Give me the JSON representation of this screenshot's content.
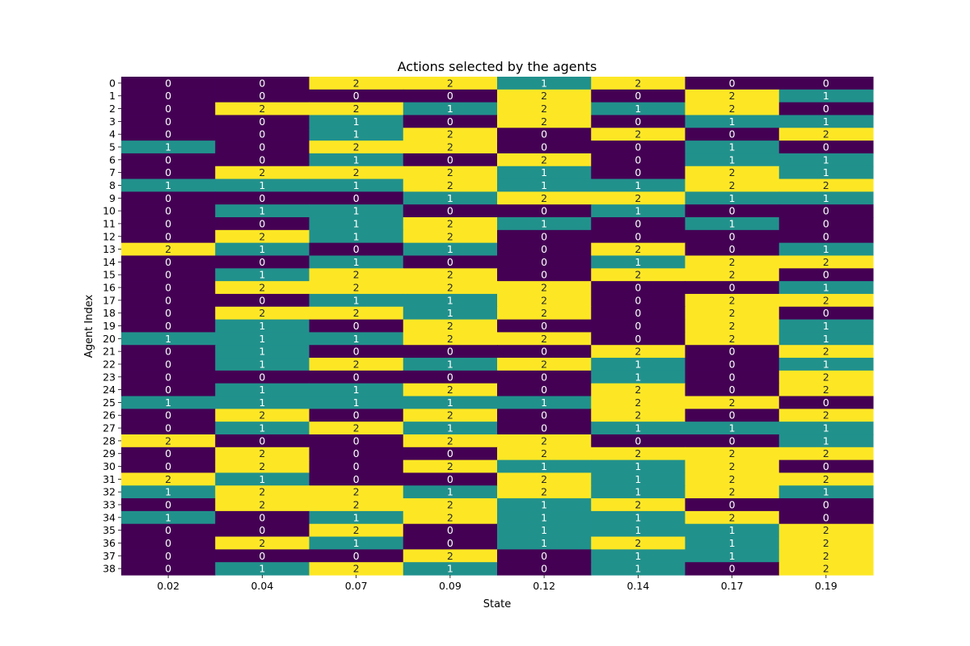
{
  "chart_data": {
    "type": "heatmap",
    "title": "Actions selected by the agents",
    "xlabel": "State",
    "ylabel": "Agent Index",
    "x_categories": [
      "0.02",
      "0.04",
      "0.07",
      "0.09",
      "0.12",
      "0.14",
      "0.17",
      "0.19"
    ],
    "y_categories": [
      "0",
      "1",
      "2",
      "3",
      "4",
      "5",
      "6",
      "7",
      "8",
      "9",
      "10",
      "11",
      "12",
      "13",
      "14",
      "15",
      "16",
      "17",
      "18",
      "19",
      "20",
      "21",
      "22",
      "23",
      "24",
      "25",
      "26",
      "27",
      "28",
      "29",
      "30",
      "31",
      "32",
      "33",
      "34",
      "35",
      "36",
      "37",
      "38"
    ],
    "values": [
      [
        0,
        0,
        2,
        2,
        1,
        2,
        0,
        0
      ],
      [
        0,
        0,
        0,
        0,
        2,
        0,
        2,
        1
      ],
      [
        0,
        2,
        2,
        1,
        2,
        1,
        2,
        0
      ],
      [
        0,
        0,
        1,
        0,
        2,
        0,
        1,
        1
      ],
      [
        0,
        0,
        1,
        2,
        0,
        2,
        0,
        2
      ],
      [
        1,
        0,
        2,
        2,
        0,
        0,
        1,
        0
      ],
      [
        0,
        0,
        1,
        0,
        2,
        0,
        1,
        1
      ],
      [
        0,
        2,
        2,
        2,
        1,
        0,
        2,
        1
      ],
      [
        1,
        1,
        1,
        2,
        1,
        1,
        2,
        2
      ],
      [
        0,
        0,
        0,
        1,
        2,
        2,
        1,
        1
      ],
      [
        0,
        1,
        1,
        0,
        0,
        1,
        0,
        0
      ],
      [
        0,
        0,
        1,
        2,
        1,
        0,
        1,
        0
      ],
      [
        0,
        2,
        1,
        2,
        0,
        0,
        0,
        0
      ],
      [
        2,
        1,
        0,
        1,
        0,
        2,
        0,
        1
      ],
      [
        0,
        0,
        1,
        0,
        0,
        1,
        2,
        2
      ],
      [
        0,
        1,
        2,
        2,
        0,
        2,
        2,
        0
      ],
      [
        0,
        2,
        2,
        2,
        2,
        0,
        0,
        1
      ],
      [
        0,
        0,
        1,
        1,
        2,
        0,
        2,
        2
      ],
      [
        0,
        2,
        2,
        1,
        2,
        0,
        2,
        0
      ],
      [
        0,
        1,
        0,
        2,
        0,
        0,
        2,
        1
      ],
      [
        1,
        1,
        1,
        2,
        2,
        0,
        2,
        1
      ],
      [
        0,
        1,
        0,
        0,
        0,
        2,
        0,
        2
      ],
      [
        0,
        1,
        2,
        1,
        2,
        1,
        0,
        1
      ],
      [
        0,
        0,
        0,
        0,
        0,
        1,
        0,
        2
      ],
      [
        0,
        1,
        1,
        2,
        0,
        2,
        0,
        2
      ],
      [
        1,
        1,
        1,
        1,
        1,
        2,
        2,
        0
      ],
      [
        0,
        2,
        0,
        2,
        0,
        2,
        0,
        2
      ],
      [
        0,
        1,
        2,
        1,
        0,
        1,
        1,
        1
      ],
      [
        2,
        0,
        0,
        2,
        2,
        0,
        0,
        1
      ],
      [
        0,
        2,
        0,
        0,
        2,
        2,
        2,
        2
      ],
      [
        0,
        2,
        0,
        2,
        1,
        1,
        2,
        0
      ],
      [
        2,
        1,
        0,
        0,
        2,
        1,
        2,
        2
      ],
      [
        1,
        2,
        2,
        1,
        2,
        1,
        2,
        1
      ],
      [
        0,
        2,
        2,
        2,
        1,
        2,
        0,
        0
      ],
      [
        1,
        0,
        1,
        2,
        1,
        1,
        2,
        0
      ],
      [
        0,
        0,
        2,
        0,
        1,
        1,
        1,
        2
      ],
      [
        0,
        2,
        1,
        0,
        1,
        2,
        1,
        2
      ],
      [
        0,
        0,
        0,
        2,
        0,
        1,
        1,
        2
      ],
      [
        0,
        1,
        2,
        1,
        0,
        1,
        0,
        2
      ]
    ],
    "colormap": {
      "0": "#440154",
      "1": "#21918c",
      "2": "#fde725"
    },
    "annotation_colors": {
      "dark_cell": "#ffffff",
      "light_cell": "#262626"
    },
    "colorbar": false,
    "grid": false
  }
}
